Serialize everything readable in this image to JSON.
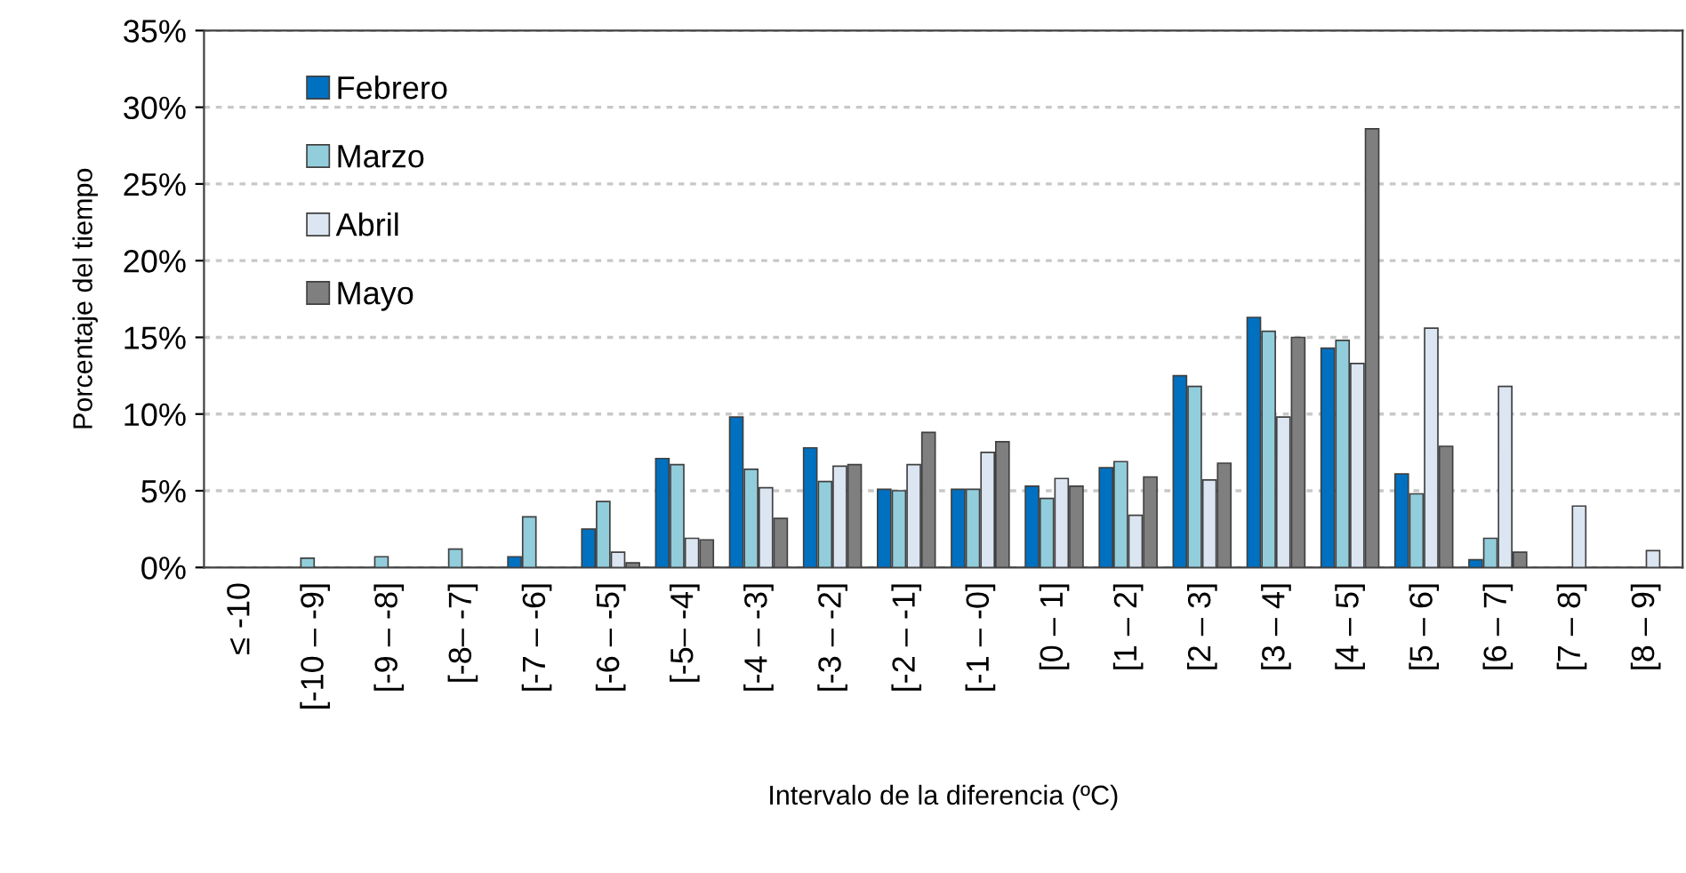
{
  "chart_data": {
    "type": "bar",
    "xlabel": "Intervalo de la diferencia (ºC)",
    "ylabel": "Porcentaje del tiempo",
    "categories": [
      "≤ -10",
      "[-10 – -9]",
      "[-9 – -8]",
      "[-8– -7]",
      "[-7 – -6]",
      "[-6 – -5]",
      "[-5– -4]",
      "[-4 – -3]",
      "[-3 – -2]",
      "[-2 – -1]",
      "[-1 – -0]",
      "[0 – 1]",
      "[1 – 2]",
      "[2 – 3]",
      "[3 – 4]",
      "[4 – 5]",
      "[5 – 6]",
      "[6 – 7]",
      "[7 – 8]",
      "[8 – 9]"
    ],
    "series": [
      {
        "name": "Febrero",
        "color": "#0070c0",
        "values": [
          null,
          null,
          null,
          null,
          0.7,
          2.5,
          7.1,
          9.8,
          7.8,
          5.1,
          5.1,
          5.3,
          6.5,
          12.5,
          16.3,
          14.3,
          6.1,
          0.5,
          null,
          null
        ]
      },
      {
        "name": "Marzo",
        "color": "#92cddc",
        "values": [
          null,
          0.6,
          0.7,
          1.2,
          3.3,
          4.3,
          6.7,
          6.4,
          5.6,
          5.0,
          5.1,
          4.5,
          6.9,
          11.8,
          15.4,
          14.8,
          4.8,
          1.9,
          null,
          null
        ]
      },
      {
        "name": "Abril",
        "color": "#dce6f2",
        "values": [
          null,
          null,
          null,
          null,
          null,
          1.0,
          1.9,
          5.2,
          6.6,
          6.7,
          7.5,
          5.8,
          3.4,
          5.7,
          9.8,
          13.3,
          15.6,
          11.8,
          4.0,
          1.1
        ]
      },
      {
        "name": "Mayo",
        "color": "#7f7f7f",
        "values": [
          null,
          null,
          null,
          null,
          null,
          0.3,
          1.8,
          3.2,
          6.7,
          8.8,
          8.2,
          5.3,
          5.9,
          6.8,
          15.0,
          28.6,
          7.9,
          1.0,
          null,
          null
        ]
      }
    ],
    "ylim": [
      0,
      35
    ],
    "yticks": [
      {
        "value": 0,
        "label": "0%"
      },
      {
        "value": 5,
        "label": "5%"
      },
      {
        "value": 10,
        "label": "10%"
      },
      {
        "value": 15,
        "label": "15%"
      },
      {
        "value": 20,
        "label": "20%"
      },
      {
        "value": 25,
        "label": "25%"
      },
      {
        "value": 30,
        "label": "30%"
      },
      {
        "value": 35,
        "label": "35%"
      }
    ],
    "grid": "y",
    "legend": "top left"
  }
}
